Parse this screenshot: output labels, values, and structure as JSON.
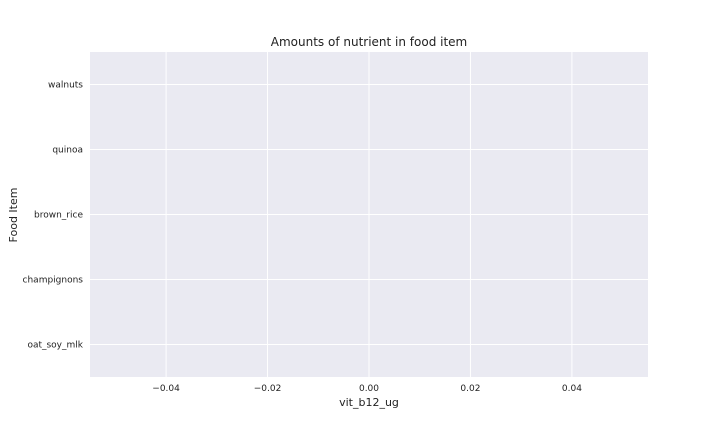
{
  "chart_data": {
    "type": "bar",
    "orientation": "horizontal",
    "title": "Amounts of nutrient in food item",
    "xlabel": "vit_b12_ug",
    "ylabel": "Food Item",
    "categories": [
      "walnuts",
      "quinoa",
      "brown_rice",
      "champignons",
      "oat_soy_mlk"
    ],
    "values": [
      0,
      0,
      0,
      0,
      0
    ],
    "xlim": [
      -0.055,
      0.055
    ],
    "xticks": [
      -0.04,
      -0.02,
      0.0,
      0.02,
      0.04
    ],
    "xtick_labels": [
      "−0.04",
      "−0.02",
      "0.00",
      "0.02",
      "0.04"
    ],
    "grid": true,
    "colors": {
      "plot_background": "#eaeaf2",
      "grid": "#ffffff",
      "text": "#222222"
    }
  }
}
